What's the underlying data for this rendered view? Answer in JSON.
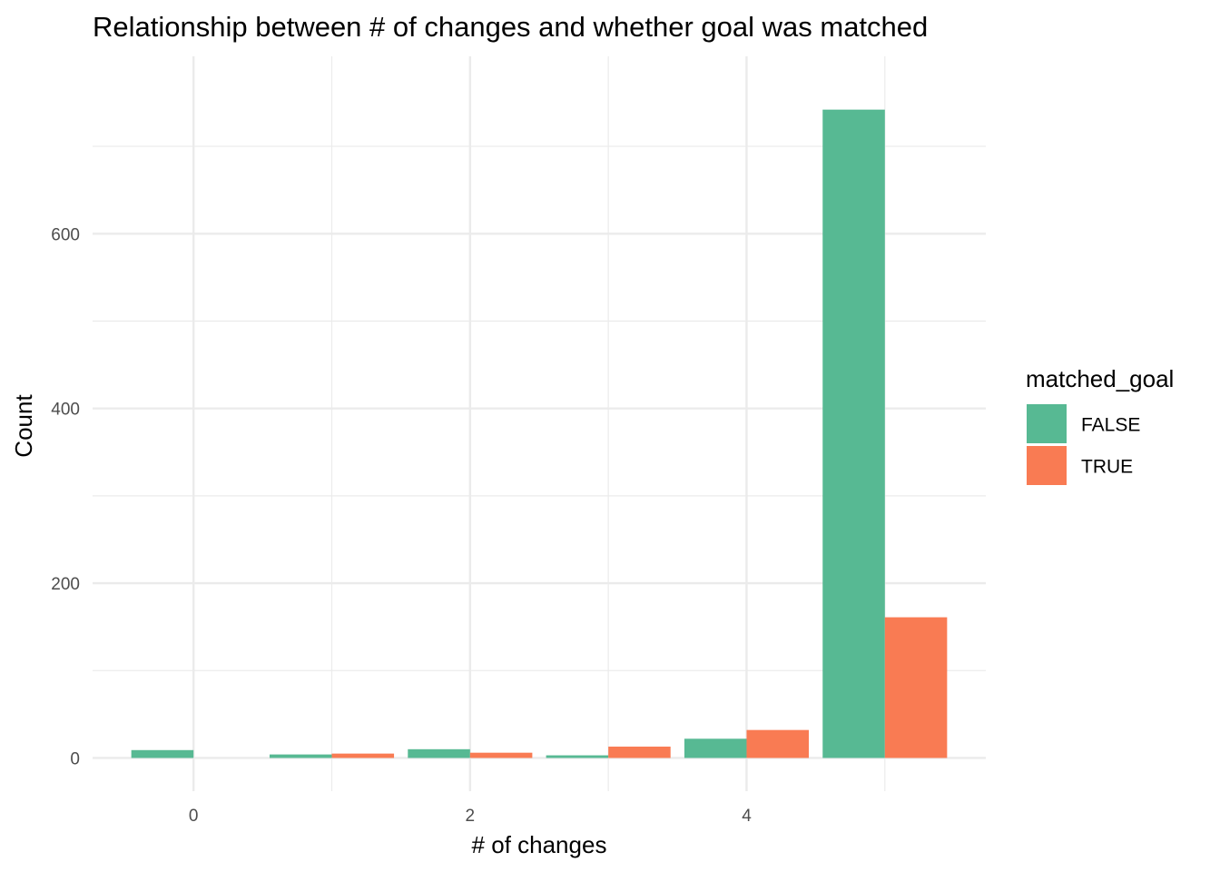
{
  "chart_data": {
    "type": "bar",
    "title": "Relationship between # of changes and whether goal was matched",
    "xlabel": "# of changes",
    "ylabel": "Count",
    "x": [
      0,
      1,
      2,
      3,
      4,
      5
    ],
    "x_ticks": [
      0,
      2,
      4
    ],
    "y_ticks": [
      0,
      200,
      400,
      600
    ],
    "xlim": [
      -0.73,
      5.73
    ],
    "ylim": [
      -38,
      803
    ],
    "grid": true,
    "legend_title": "matched_goal",
    "legend_position": "right",
    "series": [
      {
        "name": "FALSE",
        "color": "#57b993",
        "values": [
          9,
          4,
          10,
          3,
          22,
          742
        ]
      },
      {
        "name": "TRUE",
        "color": "#f97b53",
        "values": [
          0,
          5,
          6,
          13,
          32,
          161
        ]
      }
    ]
  }
}
